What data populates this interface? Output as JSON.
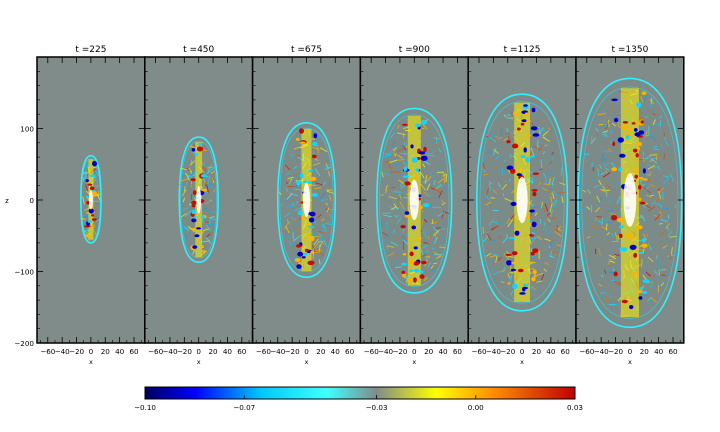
{
  "chart_data": {
    "type": "heatmap",
    "panels": [
      {
        "title": "t =225",
        "time": 225,
        "blob_half_width": 14,
        "blob_top": 62,
        "blob_bottom": -60
      },
      {
        "title": "t =450",
        "time": 450,
        "blob_half_width": 27,
        "blob_top": 88,
        "blob_bottom": -87
      },
      {
        "title": "t =675",
        "time": 675,
        "blob_half_width": 40,
        "blob_top": 108,
        "blob_bottom": -108
      },
      {
        "title": "t =900",
        "time": 900,
        "blob_half_width": 52,
        "blob_top": 128,
        "blob_bottom": -130
      },
      {
        "title": "t =1125",
        "time": 1125,
        "blob_half_width": 63,
        "blob_top": 148,
        "blob_bottom": -155
      },
      {
        "title": "t =1350",
        "time": 1350,
        "blob_half_width": 72,
        "blob_top": 170,
        "blob_bottom": -178
      }
    ],
    "x_label": "x",
    "y_label": "z",
    "xlim": [
      -75,
      75
    ],
    "ylim": [
      -200,
      200
    ],
    "x_ticks": [
      -60,
      -40,
      -20,
      0,
      20,
      40,
      60
    ],
    "x_tick_labels": [
      "−60",
      "−40",
      "−20",
      "0",
      "20",
      "40",
      "60"
    ],
    "y_ticks": [
      -200,
      -100,
      0,
      100
    ],
    "y_tick_labels": [
      "−200",
      "−100",
      "0",
      "100"
    ],
    "colorbar": {
      "vmin": -0.1,
      "vmax": 0.03,
      "ticks": [
        -0.1,
        -0.07,
        -0.03,
        0.0,
        0.03
      ],
      "tick_labels": [
        "−0.10",
        "−0.07",
        "−0.03",
        "0.00",
        "0.03"
      ],
      "stops": [
        {
          "value": -0.1,
          "color": "#000060"
        },
        {
          "value": -0.085,
          "color": "#0000ff"
        },
        {
          "value": -0.065,
          "color": "#00c8ff"
        },
        {
          "value": -0.045,
          "color": "#40ffff"
        },
        {
          "value": -0.03,
          "color": "#7f8c8a"
        },
        {
          "value": -0.012,
          "color": "#ffff00"
        },
        {
          "value": 0.005,
          "color": "#ff9000"
        },
        {
          "value": 0.03,
          "color": "#c00000"
        }
      ]
    },
    "background_value": -0.03,
    "background_color": "#7f8c8a"
  }
}
